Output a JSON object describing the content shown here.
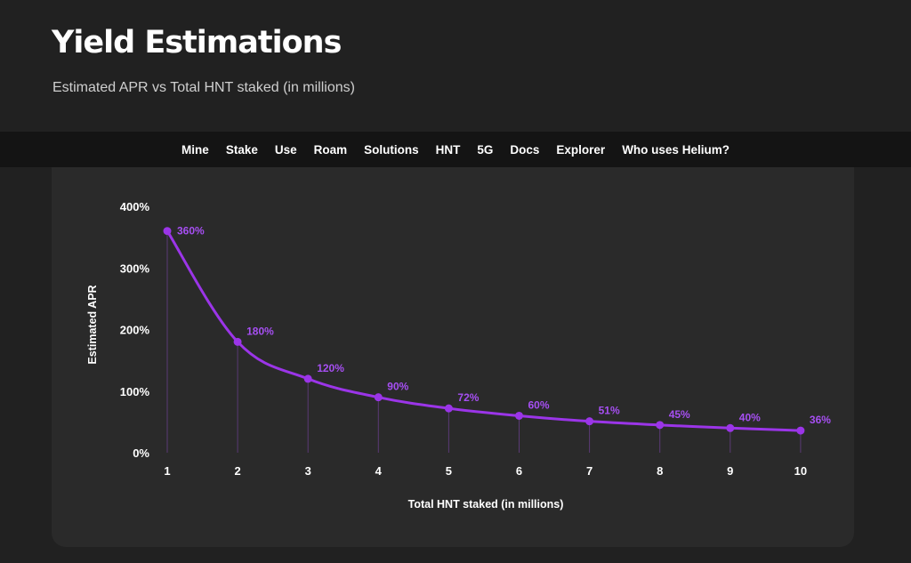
{
  "header": {
    "title": "Yield Estimations",
    "subtitle": "Estimated APR vs Total HNT staked (in millions)"
  },
  "nav": {
    "items": [
      "Mine",
      "Stake",
      "Use",
      "Roam",
      "Solutions",
      "HNT",
      "5G",
      "Docs",
      "Explorer",
      "Who uses Helium?"
    ]
  },
  "chart_data": {
    "type": "line",
    "xlabel": "Total HNT staked (in millions)",
    "ylabel": "Estimated APR",
    "x": [
      1,
      2,
      3,
      4,
      5,
      6,
      7,
      8,
      9,
      10
    ],
    "series": [
      {
        "values": [
          360,
          180,
          120,
          90,
          72,
          60,
          51,
          45,
          40,
          36
        ]
      }
    ],
    "data_labels": [
      "360%",
      "180%",
      "120%",
      "90%",
      "72%",
      "60%",
      "51%",
      "45%",
      "40%",
      "36%"
    ],
    "ylim": [
      0,
      400
    ],
    "yticks": [
      "0%",
      "100%",
      "200%",
      "300%",
      "400%"
    ],
    "xticks": [
      "1",
      "2",
      "3",
      "4",
      "5",
      "6",
      "7",
      "8",
      "9",
      "10"
    ],
    "color": "#9b35e8",
    "grid": false,
    "drop_lines": true
  }
}
